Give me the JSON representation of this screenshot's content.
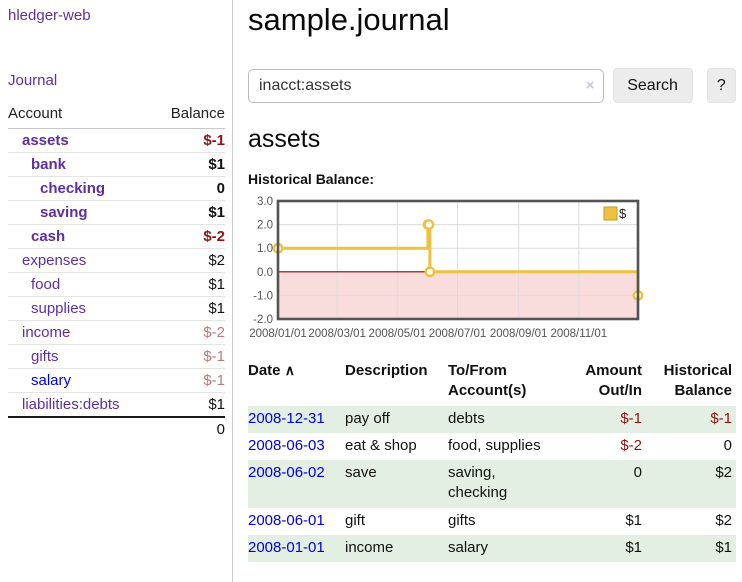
{
  "app": {
    "brand": "hledger-web"
  },
  "sidebar": {
    "journal_link": "Journal",
    "accounts": {
      "headers": {
        "account": "Account",
        "balance": "Balance"
      },
      "rows": [
        {
          "name": "assets",
          "balance": "$-1"
        },
        {
          "name": "bank",
          "balance": "$1"
        },
        {
          "name": "checking",
          "balance": "0"
        },
        {
          "name": "saving",
          "balance": "$1"
        },
        {
          "name": "cash",
          "balance": "$-2"
        },
        {
          "name": "expenses",
          "balance": "$2"
        },
        {
          "name": "food",
          "balance": "$1"
        },
        {
          "name": "supplies",
          "balance": "$1"
        },
        {
          "name": "income",
          "balance": "$-2"
        },
        {
          "name": "gifts",
          "balance": "$-1"
        },
        {
          "name": "salary",
          "balance": "$-1"
        },
        {
          "name": "liabilities:debts",
          "balance": "$1"
        }
      ],
      "total": "0"
    }
  },
  "main": {
    "title": "sample.journal",
    "search": {
      "value": "inacct:assets",
      "clear_icon": "×",
      "button_label": "Search",
      "help_label": "?"
    },
    "account_heading": "assets",
    "chart_label": "Historical Balance:",
    "chart_data": {
      "type": "line",
      "step": true,
      "title": "Historical Balance:",
      "series": [
        {
          "name": "$",
          "points": [
            {
              "x": "2008-01-01",
              "y": 1
            },
            {
              "x": "2008-06-01",
              "y": 2
            },
            {
              "x": "2008-06-02",
              "y": 2
            },
            {
              "x": "2008-06-03",
              "y": 0
            },
            {
              "x": "2008-12-31",
              "y": -1
            }
          ]
        }
      ],
      "x_range": [
        "2008-01-01",
        "2008-12-31"
      ],
      "ylim": [
        -2,
        3
      ],
      "yticks": [
        "3.0",
        "2.0",
        "1.0",
        "0.0",
        "-1.0",
        "-2.0"
      ],
      "xticks": [
        {
          "label": "2008/01/01",
          "date": "2008-01-01"
        },
        {
          "label": "2008/03/01",
          "date": "2008-03-01"
        },
        {
          "label": "2008/05/01",
          "date": "2008-05-01"
        },
        {
          "label": "2008/07/01",
          "date": "2008-07-01"
        },
        {
          "label": "2008/09/01",
          "date": "2008-09-01"
        },
        {
          "label": "2008/11/01",
          "date": "2008-11-01"
        }
      ],
      "legend_position": "top-right",
      "grid": true,
      "colors": {
        "series": "#edc240",
        "series_border": "#bf9d2c",
        "negative_fill": "#f9dcdc",
        "zero_line": "#8b0000",
        "gridline": "#dcdcdc",
        "plot_border": "#545454"
      }
    },
    "register": {
      "headers": {
        "date": "Date",
        "sort_icon": "∧",
        "description": "Description",
        "accounts": "To/From Account(s)",
        "amount": "Amount Out/In",
        "balance": "Historical Balance"
      },
      "rows": [
        {
          "date": "2008-12-31",
          "description": "pay off",
          "accounts": "debts",
          "amount": "$-1",
          "balance": "$-1"
        },
        {
          "date": "2008-06-03",
          "description": "eat & shop",
          "accounts": "food, supplies",
          "amount": "$-2",
          "balance": "0"
        },
        {
          "date": "2008-06-02",
          "description": "save",
          "accounts": "saving, checking",
          "amount": "0",
          "balance": "$2"
        },
        {
          "date": "2008-06-01",
          "description": "gift",
          "accounts": "gifts",
          "amount": "$1",
          "balance": "$2"
        },
        {
          "date": "2008-01-01",
          "description": "income",
          "accounts": "salary",
          "amount": "$1",
          "balance": "$1"
        }
      ]
    }
  }
}
